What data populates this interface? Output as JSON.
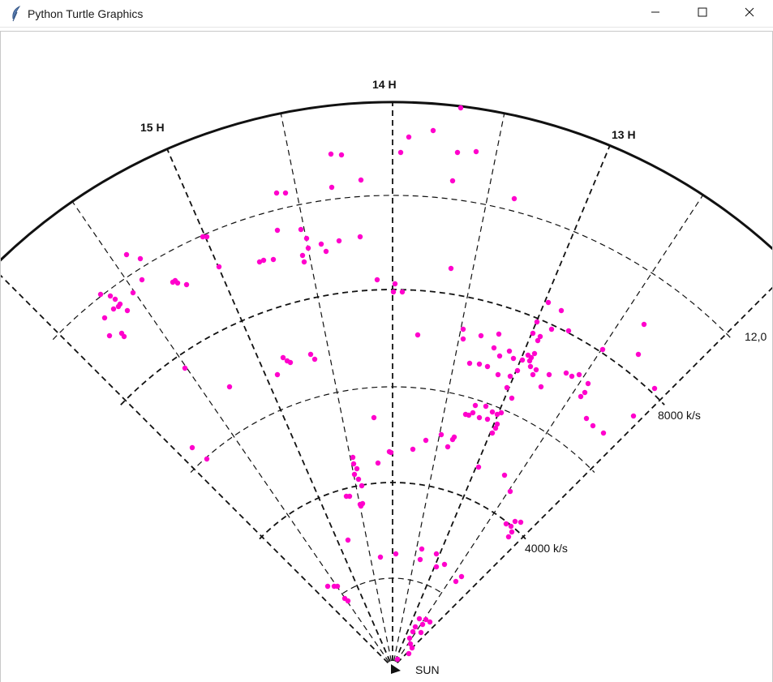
{
  "window": {
    "title": "Python Turtle Graphics",
    "icon": "feather-icon",
    "controls": [
      "minimize-icon",
      "maximize-icon",
      "close-icon"
    ]
  },
  "canvas": {
    "labels": {
      "hour_15": "15 H",
      "hour_14": "14 H",
      "hour_13": "13 H",
      "hour_12": "12,0",
      "ring_8000": "8000 k/s",
      "ring_4000": "4000 k/s",
      "sun": "SUN"
    },
    "colors": {
      "dots": "#ff00cc",
      "lines": "#111111"
    }
  }
}
